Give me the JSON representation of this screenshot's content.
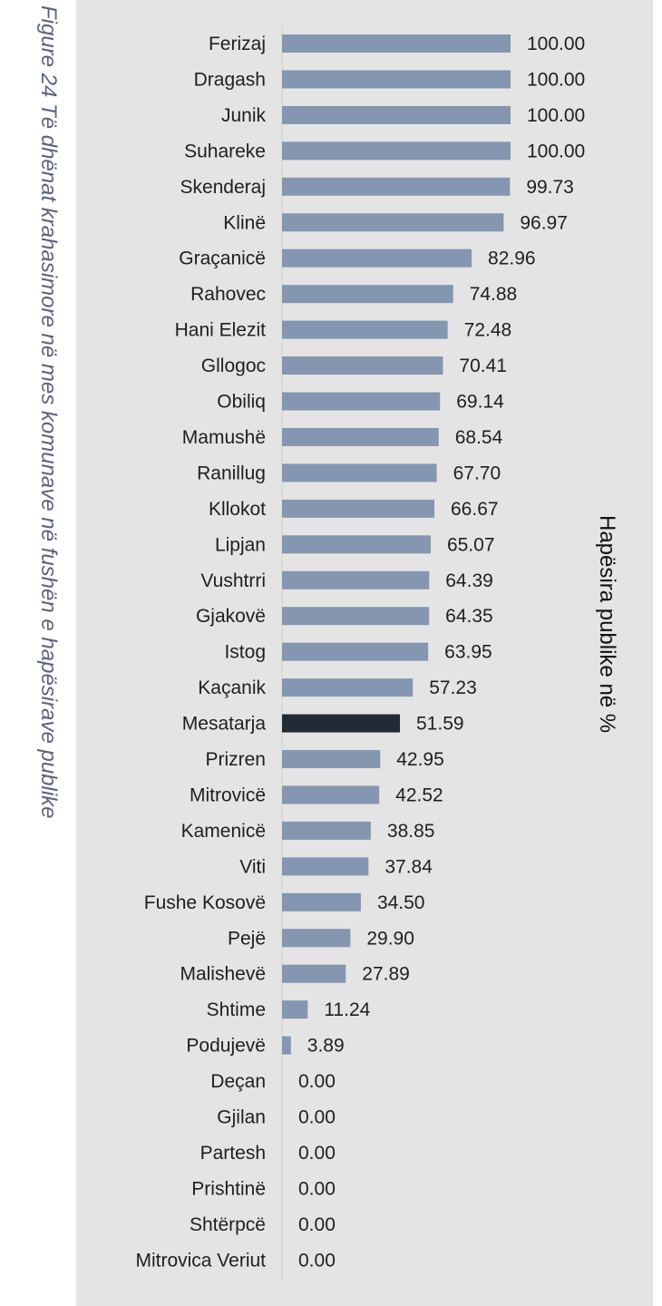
{
  "figure_caption": "Figure 24 Të dhënat krahasimore në mes komunave në fushën e hapësirave publike",
  "colors": {
    "bar": "#8496b0",
    "highlight_bar": "#222a35",
    "panel_background": "#e4e4e4",
    "caption_text": "#5a6478"
  },
  "chart_data": {
    "type": "bar",
    "orientation": "horizontal",
    "ylabel": "Hapësira publike në %",
    "xlim": [
      0,
      100
    ],
    "grid": false,
    "legend": "none",
    "value_format": "two decimals",
    "highlight_category": "Mesatarja",
    "categories": [
      "Ferizaj",
      "Dragash",
      "Junik",
      "Suhareke",
      "Skenderaj",
      "Klinë",
      "Graçanicë",
      "Rahovec",
      "Hani Elezit",
      "Gllogoc",
      "Obiliq",
      "Mamushë",
      "Ranillug",
      "Kllokot",
      "Lipjan",
      "Vushtrri",
      "Gjakovë",
      "Istog",
      "Kaçanik",
      "Mesatarja",
      "Prizren",
      "Mitrovicë",
      "Kamenicë",
      "Viti",
      "Fushe Kosovë",
      "Pejë",
      "Malishevë",
      "Shtime",
      "Podujevë",
      "Deçan",
      "Gjilan",
      "Partesh",
      "Prishtinë",
      "Shtërpcë",
      "Mitrovica Veriut"
    ],
    "values": [
      100.0,
      100.0,
      100.0,
      100.0,
      99.73,
      96.97,
      82.96,
      74.88,
      72.48,
      70.41,
      69.14,
      68.54,
      67.7,
      66.67,
      65.07,
      64.39,
      64.35,
      63.95,
      57.23,
      51.59,
      42.95,
      42.52,
      38.85,
      37.84,
      34.5,
      29.9,
      27.89,
      11.24,
      3.89,
      0.0,
      0.0,
      0.0,
      0.0,
      0.0,
      0.0
    ]
  }
}
